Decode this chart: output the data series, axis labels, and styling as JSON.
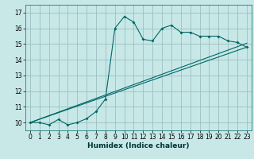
{
  "xlabel": "Humidex (Indice chaleur)",
  "background_color": "#c8e8e8",
  "grid_color": "#9bbfbf",
  "line_color": "#006666",
  "xlim": [
    -0.5,
    23.5
  ],
  "ylim": [
    9.5,
    17.5
  ],
  "xticks": [
    0,
    1,
    2,
    3,
    4,
    5,
    6,
    7,
    8,
    9,
    10,
    11,
    12,
    13,
    14,
    15,
    16,
    17,
    18,
    19,
    20,
    21,
    22,
    23
  ],
  "yticks": [
    10,
    11,
    12,
    13,
    14,
    15,
    16,
    17
  ],
  "series1_x": [
    0,
    1,
    2,
    3,
    4,
    5,
    6,
    7,
    8,
    9,
    10,
    11,
    12,
    13,
    14,
    15,
    16,
    17,
    18,
    19,
    20,
    21,
    22,
    23
  ],
  "series1_y": [
    10.0,
    10.0,
    9.85,
    10.2,
    9.85,
    10.0,
    10.25,
    10.7,
    11.5,
    16.0,
    16.75,
    16.4,
    15.3,
    15.2,
    16.0,
    16.2,
    15.75,
    15.75,
    15.5,
    15.5,
    15.5,
    15.2,
    15.1,
    14.8
  ],
  "series2_x": [
    0,
    23
  ],
  "series2_y": [
    10.0,
    14.8
  ],
  "series3_x": [
    0,
    23
  ],
  "series3_y": [
    10.0,
    15.05
  ],
  "xlabel_fontsize": 6.5,
  "tick_fontsize": 5.5
}
